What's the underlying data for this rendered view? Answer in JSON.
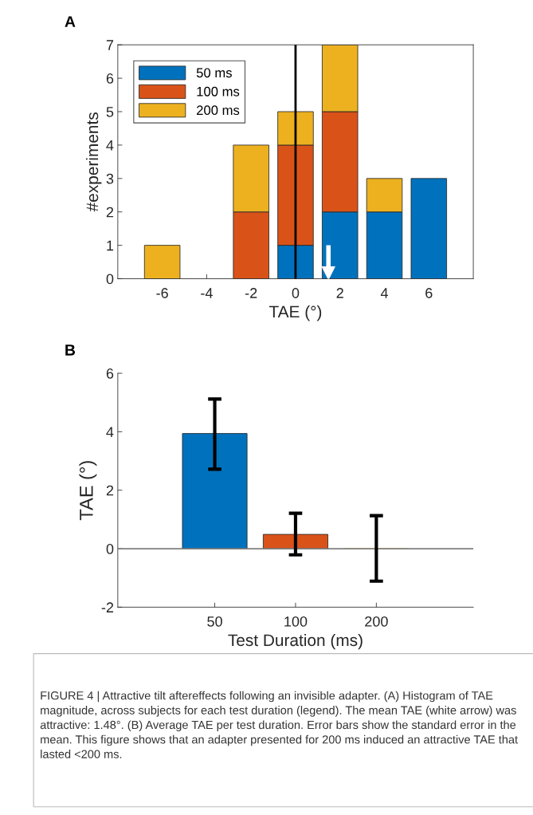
{
  "chart_data": [
    {
      "type": "bar",
      "title": "A",
      "stacked": true,
      "x": [
        -6,
        -4,
        -2,
        0,
        2,
        4,
        6
      ],
      "xlabel": "TAE (°)",
      "ylabel": "#experiments",
      "series": [
        {
          "name": "50 ms",
          "color": "#0072bd",
          "values": [
            0,
            0,
            0,
            1,
            2,
            2,
            3
          ]
        },
        {
          "name": "100 ms",
          "color": "#d95319",
          "values": [
            0,
            0,
            2,
            3,
            3,
            0,
            0
          ]
        },
        {
          "name": "200 ms",
          "color": "#edb120",
          "values": [
            1,
            0,
            2,
            1,
            2,
            1,
            0
          ]
        }
      ],
      "xlim": [
        -8,
        8
      ],
      "xticks": [
        -6,
        -4,
        -2,
        0,
        2,
        4,
        6
      ],
      "ylim": [
        0,
        7
      ],
      "yticks": [
        0,
        1,
        2,
        3,
        4,
        5,
        6,
        7
      ],
      "ref_lines": [
        {
          "axis": "x",
          "value": 0,
          "color": "#000000"
        },
        {
          "axis": "x",
          "value": 1.48,
          "color": "#ffffff"
        }
      ],
      "legend": "top left",
      "grid": false
    },
    {
      "type": "bar",
      "title": "B",
      "categories": [
        "50",
        "100",
        "200"
      ],
      "values": [
        3.94,
        0.49,
        0
      ],
      "colors": [
        "#0072bd",
        "#d95319",
        "#edb120"
      ],
      "errors": [
        [
          2.72,
          5.12
        ],
        [
          -0.21,
          1.21
        ],
        [
          -1.11,
          1.13
        ]
      ],
      "xlabel": "Test Duration (ms)",
      "ylabel": "TAE (°)",
      "ylim": [
        -2,
        6
      ],
      "yticks": [
        -2,
        0,
        2,
        4,
        6
      ],
      "ref_lines": [
        {
          "axis": "y",
          "value": 0,
          "color": "#808080"
        }
      ],
      "annotations": [
        "FIGURE 4 | Attractive tilt aftereffects following an invisible adapter. (A) Histogram of TAE magnitude, across subjects for each test duration (legend). The mean TAE (white arrow) was attractive: 1.48°. (B) Average TAE per test duration. Error bars show the standard error in the mean. This figure shows that an adapter presented for 200 ms induced an attractive TAE that lasted <200 ms."
      ],
      "grid": false
    }
  ]
}
